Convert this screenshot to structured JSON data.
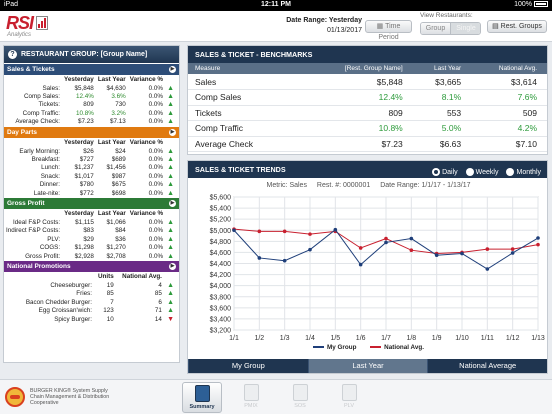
{
  "status_bar": {
    "device": "iPad",
    "time": "12:11 PM",
    "battery": "100%"
  },
  "header": {
    "date_range_label": "Date Range: Yesterday",
    "date_value": "01/13/2017",
    "time_period_button": "Time Period",
    "view_label": "View Restaurants:",
    "group_button": "Group",
    "single_button": "Single",
    "rest_groups_button": "Rest. Groups",
    "logo_text": "RSI",
    "logo_sub": "Analytics"
  },
  "left_panel": {
    "title": "RESTAURANT GROUP: [Group Name]",
    "sales_tickets": {
      "title": "Sales & Tickets",
      "columns": [
        "Yesterday",
        "Last Year",
        "Variance %"
      ],
      "rows": [
        {
          "label": "Sales:",
          "yesterday": "$5,848",
          "last_year": "$4,630",
          "variance": "0.0%",
          "trend": "up"
        },
        {
          "label": "Comp Sales:",
          "yesterday": "12.4%",
          "last_year": "3.6%",
          "variance": "0.0%",
          "trend": "up"
        },
        {
          "label": "Tickets:",
          "yesterday": "809",
          "last_year": "730",
          "variance": "0.0%",
          "trend": "up"
        },
        {
          "label": "Comp Traffic:",
          "yesterday": "10.8%",
          "last_year": "3.2%",
          "variance": "0.0%",
          "trend": "up"
        },
        {
          "label": "Average Check:",
          "yesterday": "$7.23",
          "last_year": "$7.13",
          "variance": "0.0%",
          "trend": "up"
        }
      ]
    },
    "day_parts": {
      "title": "Day Parts",
      "columns": [
        "Yesterday",
        "Last Year",
        "Variance %"
      ],
      "rows": [
        {
          "label": "Early Morning:",
          "yesterday": "$26",
          "last_year": "$24",
          "variance": "0.0%",
          "trend": "up"
        },
        {
          "label": "Breakfast:",
          "yesterday": "$727",
          "last_year": "$689",
          "variance": "0.0%",
          "trend": "up"
        },
        {
          "label": "Lunch:",
          "yesterday": "$1,237",
          "last_year": "$1,456",
          "variance": "0.0%",
          "trend": "up"
        },
        {
          "label": "Snack:",
          "yesterday": "$1,017",
          "last_year": "$987",
          "variance": "0.0%",
          "trend": "up"
        },
        {
          "label": "Dinner:",
          "yesterday": "$780",
          "last_year": "$675",
          "variance": "0.0%",
          "trend": "up"
        },
        {
          "label": "Late-nite:",
          "yesterday": "$772",
          "last_year": "$698",
          "variance": "0.0%",
          "trend": "up"
        }
      ]
    },
    "gross_profit": {
      "title": "Gross Profit",
      "columns": [
        "Yesterday",
        "Last Year",
        "Variance %"
      ],
      "rows": [
        {
          "label": "Ideal F&P Costs:",
          "yesterday": "$1,115",
          "last_year": "$1,066",
          "variance": "0.0%",
          "trend": "up"
        },
        {
          "label": "Indirect F&P Costs:",
          "yesterday": "$83",
          "last_year": "$84",
          "variance": "0.0%",
          "trend": "up"
        },
        {
          "label": "PLV:",
          "yesterday": "$29",
          "last_year": "$36",
          "variance": "0.0%",
          "trend": "up"
        },
        {
          "label": "COGS:",
          "yesterday": "$1,298",
          "last_year": "$1,270",
          "variance": "0.0%",
          "trend": "up"
        },
        {
          "label": "Gross Profit:",
          "yesterday": "$2,928",
          "last_year": "$2,708",
          "variance": "0.0%",
          "trend": "up"
        }
      ]
    },
    "national_promotions": {
      "title": "National Promotions",
      "columns": [
        "Units",
        "National Avg."
      ],
      "rows": [
        {
          "label": "Cheeseburger:",
          "units": "19",
          "avg": "4",
          "trend": "up"
        },
        {
          "label": "Fries:",
          "units": "85",
          "avg": "85",
          "trend": "up"
        },
        {
          "label": "Bacon Chedder Burger:",
          "units": "7",
          "avg": "6",
          "trend": "up"
        },
        {
          "label": "Egg Croissan'wich:",
          "units": "123",
          "avg": "71",
          "trend": "up"
        },
        {
          "label": "Spicy Burger:",
          "units": "10",
          "avg": "14",
          "trend": "down"
        }
      ]
    }
  },
  "benchmarks": {
    "title": "SALES & TICKET - BENCHMARKS",
    "columns": [
      "Measure",
      "[Rest. Group Name]",
      "Last Year",
      "National Avg."
    ],
    "rows": [
      {
        "measure": "Sales",
        "group": "$5,848",
        "last_year": "$3,665",
        "national": "$3,614",
        "green": false
      },
      {
        "measure": "Comp Sales",
        "group": "12.4%",
        "last_year": "8.1%",
        "national": "7.6%",
        "green": true
      },
      {
        "measure": "Tickets",
        "group": "809",
        "last_year": "553",
        "national": "509",
        "green": false
      },
      {
        "measure": "Comp Traffic",
        "group": "10.8%",
        "last_year": "5.0%",
        "national": "4.2%",
        "green": true
      },
      {
        "measure": "Average Check",
        "group": "$7.23",
        "last_year": "$6.63",
        "national": "$7.10",
        "green": false
      }
    ]
  },
  "trends": {
    "title": "SALES & TICKET TRENDS",
    "radio_options": [
      {
        "label": "Daily",
        "selected": true
      },
      {
        "label": "Weekly",
        "selected": false
      },
      {
        "label": "Monthly",
        "selected": false
      }
    ],
    "metric_label": "Metric: Sales",
    "rest_label": "Rest. #: 0000001",
    "date_range_label": "Date Range: 1/1/17 - 1/13/17",
    "tabs": [
      {
        "label": "My Group",
        "active": false
      },
      {
        "label": "Last Year",
        "active": true
      },
      {
        "label": "National Average",
        "active": false
      }
    ]
  },
  "chart_data": {
    "type": "line",
    "x": [
      "1/1",
      "1/2",
      "1/3",
      "1/4",
      "1/5",
      "1/6",
      "1/7",
      "1/8",
      "1/9",
      "1/10",
      "1/11",
      "1/12",
      "1/13"
    ],
    "ylim": [
      3200,
      5600
    ],
    "yticks": [
      "$3,200",
      "$3,400",
      "$3,600",
      "$3,800",
      "$4,000",
      "$4,200",
      "$4,400",
      "$4,600",
      "$4,800",
      "$5,000",
      "$5,200",
      "$5,400",
      "$5,600"
    ],
    "grid": true,
    "legend_position": "bottom",
    "series": [
      {
        "name": "My Group",
        "color": "#1f3f7a",
        "values": [
          5000,
          4500,
          4450,
          4650,
          5010,
          4380,
          4780,
          4850,
          4550,
          4580,
          4300,
          4590,
          4860
        ]
      },
      {
        "name": "National Avg.",
        "color": "#c8202f",
        "values": [
          5020,
          4980,
          4980,
          4930,
          4980,
          4680,
          4850,
          4640,
          4580,
          4600,
          4660,
          4660,
          4740
        ]
      }
    ]
  },
  "bottom_bar": {
    "brand_text": "BURGER KING® System Supply Chain Management & Distribution Cooperative",
    "tabs": [
      {
        "label": "Summary",
        "active": true
      },
      {
        "label": "PMIX",
        "active": false
      },
      {
        "label": "SOS",
        "active": false
      },
      {
        "label": "PLV",
        "active": false
      }
    ]
  },
  "colors": {
    "navy": "#1f3550",
    "section_sales": "#2d4d78",
    "section_dayparts": "#e07a10",
    "section_gross": "#2c7a36",
    "section_promos": "#6a2a86",
    "positive": "#2c9a3a",
    "negative": "#c8202f"
  }
}
